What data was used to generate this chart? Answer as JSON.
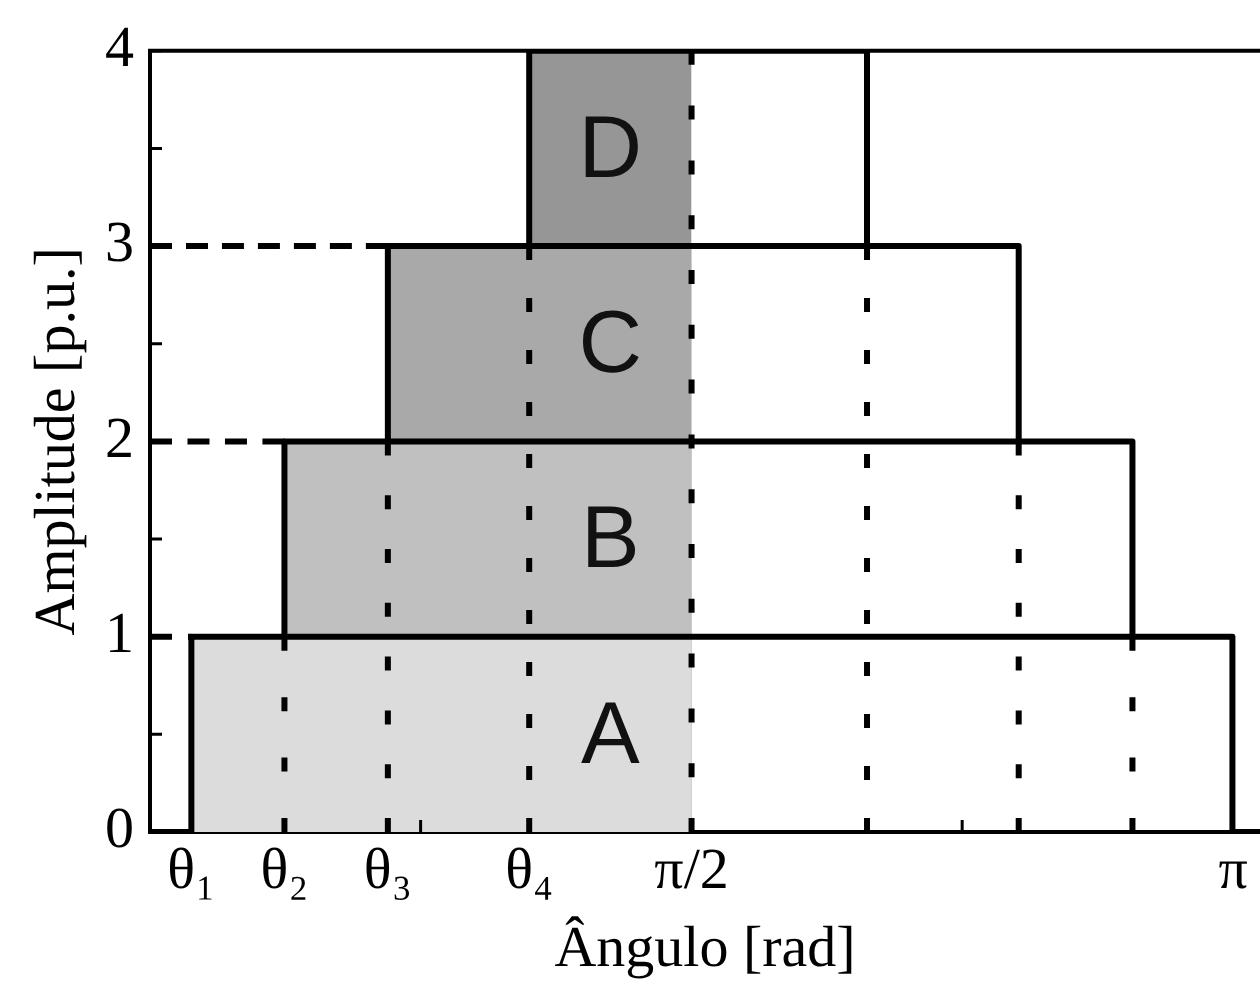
{
  "chart_data": {
    "type": "line",
    "xlabel": "Ângulo [rad]",
    "ylabel": "Amplitude [p.u.]",
    "marker": "none",
    "xlim": [
      0,
      3.22
    ],
    "ylim": [
      0,
      4
    ],
    "xticks": [
      {
        "value": 0.12,
        "label": "θ₁"
      },
      {
        "value": 0.39,
        "label": "θ₂"
      },
      {
        "value": 0.69,
        "label": "θ₃"
      },
      {
        "value": 0.785,
        "label": null
      },
      {
        "value": 1.1,
        "label": "θ₄"
      },
      {
        "value": 1.571,
        "label": "π/2"
      },
      {
        "value": 2.356,
        "label": null
      },
      {
        "value": 3.142,
        "label": "π"
      }
    ],
    "yticks": [
      0,
      {
        "value": 0.5,
        "label": null
      },
      1,
      {
        "value": 1.5,
        "label": null
      },
      2,
      {
        "value": 2.5,
        "label": null
      },
      3,
      {
        "value": 3.5,
        "label": null
      },
      4
    ],
    "series": [
      {
        "type": "area",
        "name": "D",
        "color": "#969696",
        "x": [
          1.1,
          1.571
        ],
        "values": [
          4,
          4
        ]
      },
      {
        "type": "area",
        "name": "C",
        "color": "#a9a9a9",
        "x": [
          0.69,
          1.571
        ],
        "values": [
          3,
          3
        ]
      },
      {
        "type": "area",
        "name": "B",
        "color": "#c0c0c0",
        "x": [
          0.39,
          1.571
        ],
        "values": [
          2,
          2
        ]
      },
      {
        "type": "area",
        "name": "A",
        "color": "#dcdcdc",
        "x": [
          0.12,
          1.571
        ],
        "values": [
          1,
          1
        ]
      },
      {
        "color": "#000000",
        "line_style": "dashed",
        "x": [
          0,
          0.69
        ],
        "values": [
          3,
          3
        ]
      },
      {
        "color": "#000000",
        "line_style": "dashed",
        "x": [
          0,
          0.39
        ],
        "values": [
          2,
          2
        ]
      },
      {
        "color": "#000000",
        "line_style": "dashed",
        "x": [
          0,
          0.12
        ],
        "values": [
          1,
          1
        ]
      },
      {
        "color": "#000000",
        "line_style": "dotted",
        "x": [
          0.39,
          0.39
        ],
        "values": [
          1,
          0
        ]
      },
      {
        "color": "#000000",
        "line_style": "dotted",
        "x": [
          0.69,
          0.69
        ],
        "values": [
          2,
          0
        ]
      },
      {
        "color": "#000000",
        "line_style": "dotted",
        "x": [
          1.1,
          1.1
        ],
        "values": [
          3,
          0
        ]
      },
      {
        "color": "#000000",
        "line_style": "dotted",
        "x": [
          1.571,
          1.571
        ],
        "values": [
          4,
          0
        ]
      },
      {
        "color": "#000000",
        "line_style": "dotted",
        "x": [
          2.08,
          2.08
        ],
        "values": [
          3,
          0
        ]
      },
      {
        "color": "#000000",
        "line_style": "dotted",
        "x": [
          2.52,
          2.52
        ],
        "values": [
          2,
          0
        ]
      },
      {
        "color": "#000000",
        "line_style": "dotted",
        "x": [
          2.85,
          2.85
        ],
        "values": [
          1,
          0
        ]
      },
      {
        "color": "#000000",
        "line_style": "solid",
        "x": [
          0.39,
          2.85
        ],
        "values": [
          1,
          1
        ]
      },
      {
        "color": "#000000",
        "line_style": "solid",
        "x": [
          0.69,
          2.52
        ],
        "values": [
          2,
          2
        ]
      },
      {
        "color": "#000000",
        "line_style": "solid",
        "x": [
          1.1,
          2.08
        ],
        "values": [
          3,
          3
        ]
      },
      {
        "color": "#000000",
        "line_style": "solid",
        "x": [
          0,
          0.12,
          0.12,
          0.39,
          0.39,
          0.69,
          0.69,
          1.1,
          1.1,
          2.08,
          2.08,
          2.52,
          2.52,
          2.85,
          2.85,
          3.14,
          3.14,
          3.22
        ],
        "values": [
          0,
          0,
          1,
          1,
          2,
          2,
          3,
          3,
          4,
          4,
          3,
          3,
          2,
          2,
          1,
          1,
          0,
          0
        ]
      }
    ]
  }
}
